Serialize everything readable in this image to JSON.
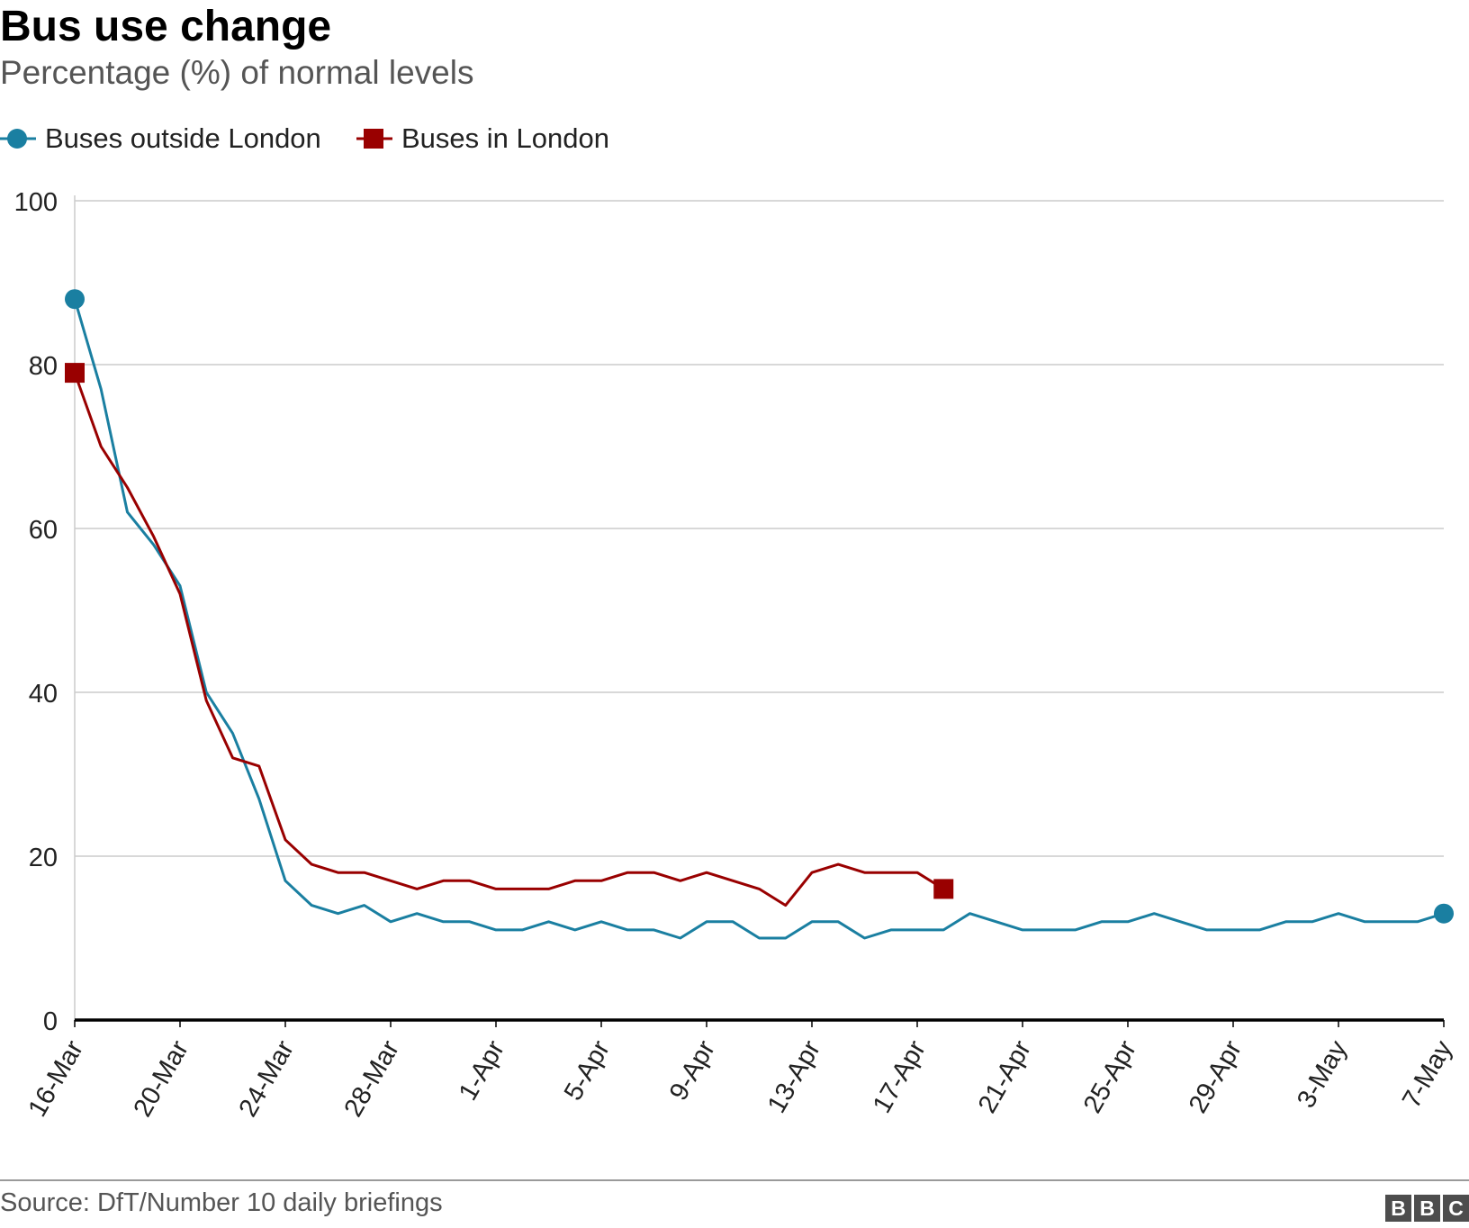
{
  "header": {
    "title": "Bus use change",
    "subtitle": "Percentage (%) of normal levels"
  },
  "legend": [
    {
      "label": "Buses outside London",
      "color": "#1a7fa1",
      "marker": "circle"
    },
    {
      "label": "Buses in London",
      "color": "#990000",
      "marker": "square"
    }
  ],
  "footer": {
    "source": "Source: DfT/Number 10 daily briefings",
    "logo_letters": [
      "B",
      "B",
      "C"
    ]
  },
  "chart_data": {
    "type": "line",
    "title": "Bus use change",
    "subtitle": "Percentage (%) of normal levels",
    "xlabel": "",
    "ylabel": "",
    "ylim": [
      0,
      100
    ],
    "yticks": [
      0,
      20,
      40,
      60,
      80,
      100
    ],
    "xticks": [
      "16-Mar",
      "20-Mar",
      "24-Mar",
      "28-Mar",
      "1-Apr",
      "5-Apr",
      "9-Apr",
      "13-Apr",
      "17-Apr",
      "21-Apr",
      "25-Apr",
      "29-Apr",
      "3-May",
      "7-May"
    ],
    "x": [
      "16-Mar",
      "17-Mar",
      "18-Mar",
      "19-Mar",
      "20-Mar",
      "21-Mar",
      "22-Mar",
      "23-Mar",
      "24-Mar",
      "25-Mar",
      "26-Mar",
      "27-Mar",
      "28-Mar",
      "29-Mar",
      "30-Mar",
      "31-Mar",
      "1-Apr",
      "2-Apr",
      "3-Apr",
      "4-Apr",
      "5-Apr",
      "6-Apr",
      "7-Apr",
      "8-Apr",
      "9-Apr",
      "10-Apr",
      "11-Apr",
      "12-Apr",
      "13-Apr",
      "14-Apr",
      "15-Apr",
      "16-Apr",
      "17-Apr",
      "18-Apr",
      "19-Apr",
      "20-Apr",
      "21-Apr",
      "22-Apr",
      "23-Apr",
      "24-Apr",
      "25-Apr",
      "26-Apr",
      "27-Apr",
      "28-Apr",
      "29-Apr",
      "30-Apr",
      "1-May",
      "2-May",
      "3-May",
      "4-May",
      "5-May",
      "6-May",
      "7-May"
    ],
    "grid": true,
    "legend_position": "top-left",
    "series": [
      {
        "name": "Buses outside London",
        "color": "#1a7fa1",
        "marker": "circle",
        "values": [
          88,
          77,
          62,
          58,
          53,
          40,
          35,
          27,
          17,
          14,
          13,
          14,
          12,
          13,
          12,
          12,
          11,
          11,
          12,
          11,
          12,
          11,
          11,
          10,
          12,
          12,
          10,
          10,
          12,
          12,
          10,
          11,
          11,
          11,
          13,
          12,
          11,
          11,
          11,
          12,
          12,
          13,
          12,
          11,
          11,
          11,
          12,
          12,
          13,
          12,
          12,
          12,
          13
        ]
      },
      {
        "name": "Buses in London",
        "color": "#990000",
        "marker": "square",
        "values": [
          79,
          70,
          65,
          59,
          52,
          39,
          32,
          31,
          22,
          19,
          18,
          18,
          17,
          16,
          17,
          17,
          16,
          16,
          16,
          17,
          17,
          18,
          18,
          17,
          18,
          17,
          16,
          14,
          18,
          19,
          18,
          18,
          18,
          16,
          null,
          null,
          null,
          null,
          null,
          null,
          null,
          null,
          null,
          null,
          null,
          null,
          null,
          null,
          null,
          null,
          null,
          null,
          null
        ]
      }
    ]
  }
}
